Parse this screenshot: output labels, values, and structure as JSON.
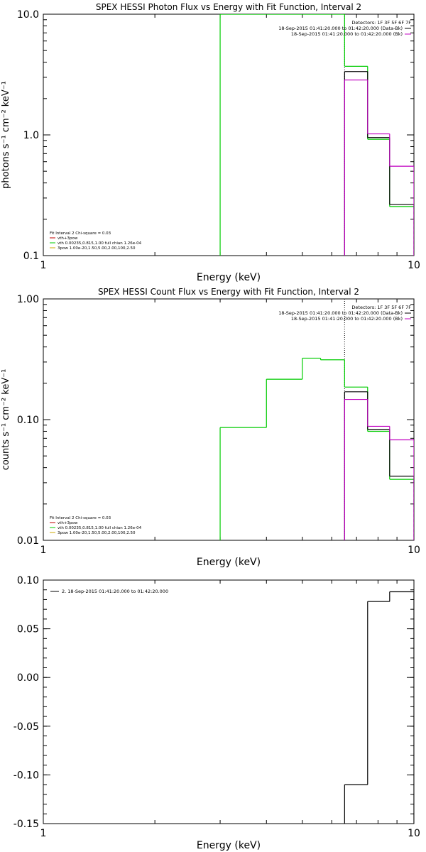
{
  "chart_data": [
    {
      "type": "line",
      "title": "SPEX HESSI Photon Flux vs Energy with Fit Function, Interval 2",
      "xlabel": "Energy (keV)",
      "ylabel": "photons s⁻¹ cm⁻² keV⁻¹",
      "x_scale": "log",
      "y_scale": "log",
      "xlim": [
        1,
        10
      ],
      "ylim": [
        0.1,
        10
      ],
      "x_ticks": [
        {
          "v": 1,
          "label": "1"
        },
        {
          "v": 10,
          "label": "10"
        }
      ],
      "y_ticks": [
        {
          "v": 0.1,
          "label": "0.1"
        },
        {
          "v": 1,
          "label": "1.0"
        },
        {
          "v": 10,
          "label": "10.0"
        }
      ],
      "legend_tr": [
        {
          "text": "Detectors: 1F 3F 5F 6F 7F",
          "color": "#000000"
        },
        {
          "text": "18-Sep-2015 01:41:20.000 to 01:42:20.000 (Data-Bk)",
          "color": "#000000"
        },
        {
          "text": "18-Sep-2015 01:41:20.000 to 01:42:20.000 (Bk)",
          "color": "#c000c0"
        }
      ],
      "legend_bl": [
        {
          "text": "Fit Interval 2   Chi-square = 0.03",
          "color": null
        },
        {
          "text": "vth+3pow",
          "color": "#c00000"
        },
        {
          "text": "vth 0.00235,0.815,1.00  full chian 1.26e-04",
          "color": "#00cc00"
        },
        {
          "text": "3pow 1.00e-20,1.50,5.00,2.00,100,2.50",
          "color": "#ccaa00"
        }
      ],
      "vlines": [
        {
          "x": 6.5,
          "style": "dotted",
          "color": "#000000"
        }
      ],
      "series": [
        {
          "name": "vth 0.00235,0.815,1.00  full chian 1.26e-04",
          "color": "#00cc00",
          "steps": [
            [
              3,
              4,
              10
            ],
            [
              4,
              5,
              10
            ],
            [
              5,
              6,
              10
            ],
            [
              6,
              6.5,
              10
            ],
            [
              6.5,
              7.5,
              3.7
            ],
            [
              7.5,
              8.6,
              0.92
            ],
            [
              8.6,
              10,
              0.255
            ]
          ]
        },
        {
          "name": "18-Sep-2015 01:41:20.000 to 01:42:20.000 (Data-Bk)",
          "color": "#000000",
          "steps": [
            [
              6.5,
              7.5,
              3.35
            ],
            [
              7.5,
              8.6,
              0.95
            ],
            [
              8.6,
              10,
              0.265
            ]
          ]
        },
        {
          "name": "18-Sep-2015 01:41:20.000 to 01:42:20.000 (Bk)",
          "color": "#c000c0",
          "steps": [
            [
              6.5,
              7.5,
              2.85
            ],
            [
              7.5,
              8.6,
              1.02
            ],
            [
              8.6,
              10,
              0.55
            ]
          ]
        }
      ]
    },
    {
      "type": "line",
      "title": "SPEX HESSI Count Flux vs Energy with Fit Function, Interval 2",
      "xlabel": "Energy (keV)",
      "ylabel": "counts s⁻¹ cm⁻² keV⁻¹",
      "x_scale": "log",
      "y_scale": "log",
      "xlim": [
        1,
        10
      ],
      "ylim": [
        0.01,
        1
      ],
      "x_ticks": [
        {
          "v": 1,
          "label": "1"
        },
        {
          "v": 10,
          "label": "10"
        }
      ],
      "y_ticks": [
        {
          "v": 0.01,
          "label": "0.01"
        },
        {
          "v": 0.1,
          "label": "0.10"
        },
        {
          "v": 1,
          "label": "1.00"
        }
      ],
      "legend_tr": [
        {
          "text": "Detectors: 1F 3F 5F 6F 7F",
          "color": "#000000"
        },
        {
          "text": "18-Sep-2015 01:41:20.000 to 01:42:20.000 (Data-Bk)",
          "color": "#000000"
        },
        {
          "text": "18-Sep-2015 01:41:20.000 to 01:42:20.000 (Bk)",
          "color": "#c000c0"
        }
      ],
      "legend_bl": [
        {
          "text": "Fit Interval 2   Chi-square = 0.03",
          "color": null
        },
        {
          "text": "vth+3pow",
          "color": "#c00000"
        },
        {
          "text": "vth 0.00235,0.815,1.00  full chian 1.26e-04",
          "color": "#00cc00"
        },
        {
          "text": "3pow 1.00e-20,1.50,5.00,2.00,100,2.50",
          "color": "#ccaa00"
        }
      ],
      "vlines": [
        {
          "x": 6.5,
          "style": "dotted",
          "color": "#000000"
        }
      ],
      "series": [
        {
          "name": "vth 0.00235,0.815,1.00  full chian 1.26e-04",
          "color": "#00cc00",
          "steps": [
            [
              3,
              4,
              0.086
            ],
            [
              4,
              5,
              0.216
            ],
            [
              5,
              5.6,
              0.323
            ],
            [
              5.6,
              6.5,
              0.313
            ],
            [
              6.5,
              7.5,
              0.186
            ],
            [
              7.5,
              8.6,
              0.08
            ],
            [
              8.6,
              10,
              0.032
            ]
          ]
        },
        {
          "name": "18-Sep-2015 01:41:20.000 to 01:42:20.000 (Data-Bk)",
          "color": "#000000",
          "steps": [
            [
              6.5,
              7.5,
              0.17
            ],
            [
              7.5,
              8.6,
              0.083
            ],
            [
              8.6,
              10,
              0.034
            ]
          ]
        },
        {
          "name": "18-Sep-2015 01:41:20.000 to 01:42:20.000 (Bk)",
          "color": "#c000c0",
          "steps": [
            [
              6.5,
              7.5,
              0.147
            ],
            [
              7.5,
              8.6,
              0.088
            ],
            [
              8.6,
              10,
              0.068
            ]
          ]
        }
      ]
    },
    {
      "type": "line",
      "title": "",
      "xlabel": "Energy (keV)",
      "ylabel": "",
      "x_scale": "log",
      "y_scale": "linear",
      "xlim": [
        1,
        10
      ],
      "ylim": [
        -0.15,
        0.1
      ],
      "x_ticks": [
        {
          "v": 1,
          "label": "1"
        },
        {
          "v": 10,
          "label": "10"
        }
      ],
      "y_ticks": [
        {
          "v": 0.1,
          "label": "0.10"
        },
        {
          "v": 0.05,
          "label": "0.05"
        },
        {
          "v": 0,
          "label": "0.00"
        },
        {
          "v": -0.05,
          "label": "-0.05"
        },
        {
          "v": -0.1,
          "label": "-0.10"
        },
        {
          "v": -0.15,
          "label": "-0.15"
        }
      ],
      "legend_tr": [],
      "legend_bl": [],
      "legend_tl": [
        {
          "text": "2. 18-Sep-2015 01:41:20.000 to 01:42:20.000",
          "color": "#000000"
        }
      ],
      "vlines": [],
      "series": [
        {
          "name": "2. 18-Sep-2015 01:41:20.000 to 01:42:20.000",
          "color": "#000000",
          "steps": [
            [
              6.5,
              7.5,
              -0.11
            ],
            [
              7.5,
              8.6,
              0.078
            ],
            [
              8.6,
              10,
              0.088
            ]
          ]
        }
      ]
    }
  ]
}
